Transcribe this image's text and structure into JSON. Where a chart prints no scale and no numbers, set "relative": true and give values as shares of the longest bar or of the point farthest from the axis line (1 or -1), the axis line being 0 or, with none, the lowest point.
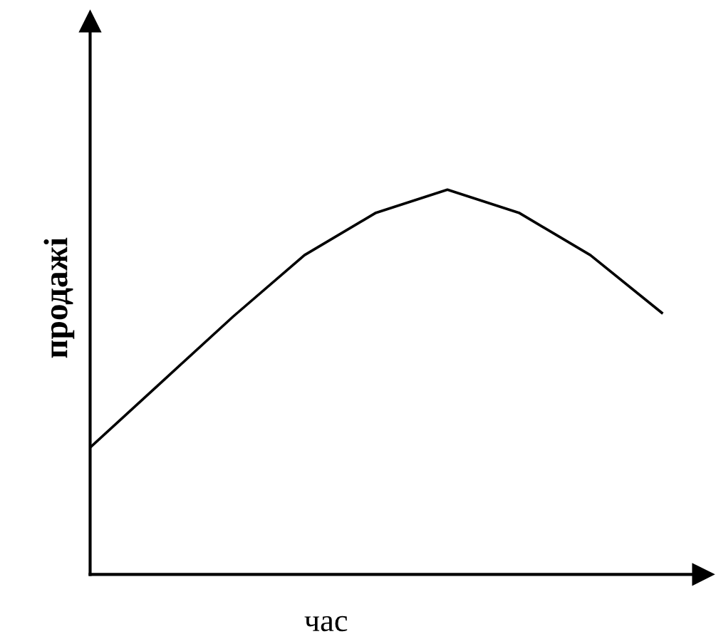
{
  "chart_data": {
    "type": "line",
    "relative": true,
    "xlabel": "час",
    "ylabel": "продажі",
    "categories": [
      null,
      null,
      null,
      null,
      null,
      null,
      null,
      null,
      null
    ],
    "series": [
      {
        "color": "#000000",
        "values": [
          0.33,
          0.5,
          0.67,
          0.83,
          0.94,
          1.0,
          0.94,
          0.83,
          0.68
        ]
      }
    ],
    "grid": false,
    "legend": false,
    "marker": "none",
    "line_style": "solid"
  }
}
